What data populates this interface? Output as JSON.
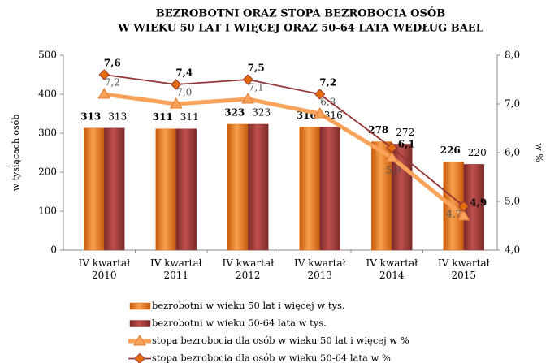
{
  "chart_data": {
    "type": "bar_line",
    "title": [
      "BEZROBOTNI  ORAZ  STOPA  BEZROBOCIA  OSÓB",
      "W  WIEKU 50  LAT I WIĘCEJ  ORAZ 50-64 LATA WEDŁUG  BAEL"
    ],
    "y_label": "w tysiącach osób",
    "y2_label": "w %",
    "categories": [
      "IV kwartał\n2010",
      "IV kwartał\n2011",
      "IV kwartał\n2012",
      "IV kwartał\n2013",
      "IV kwartał\n2014",
      "IV kwartał\n2015"
    ],
    "series": [
      {
        "name": "bezrobotni w wieku 50 lat i więcej w tys.",
        "kind": "bar",
        "color": "#e46c0a",
        "values": [
          313,
          311,
          323,
          316,
          278,
          226
        ]
      },
      {
        "name": "bezrobotni w wieku 50-64 lata w tys.",
        "kind": "bar",
        "color": "#953735",
        "values": [
          313,
          311,
          323,
          316,
          272,
          220
        ]
      },
      {
        "name": "stopa bezrobocia dla osób w wieku 50 lat i więcej w %",
        "kind": "line",
        "axis": "y2",
        "color": "#f9a25a",
        "marker": "triangle",
        "values": [
          7.2,
          7.0,
          7.1,
          6.8,
          5.9,
          4.7
        ],
        "value_labels": [
          "7,2",
          "7,0",
          "7,1",
          "6,8",
          "5,9",
          "4,7"
        ]
      },
      {
        "name": "stopa bezrobocia dla osób w wieku 50-64 lata w %",
        "kind": "line",
        "axis": "y2",
        "color": "#943634",
        "marker": "diamond",
        "values": [
          7.6,
          7.4,
          7.5,
          7.2,
          6.1,
          4.9
        ],
        "value_labels": [
          "7,6",
          "7,4",
          "7,5",
          "7,2",
          "6,1",
          "4,9"
        ]
      }
    ],
    "ylim": [
      0,
      500
    ],
    "yticks": [
      0,
      100,
      200,
      300,
      400,
      500
    ],
    "y2lim": [
      4,
      8
    ],
    "y2ticks": [
      {
        "value": 4,
        "label": "4,0"
      },
      {
        "value": 5,
        "label": "5,0"
      },
      {
        "value": 6,
        "label": "6,0"
      },
      {
        "value": 7,
        "label": "7,0"
      },
      {
        "value": 8,
        "label": "8,0"
      }
    ]
  }
}
